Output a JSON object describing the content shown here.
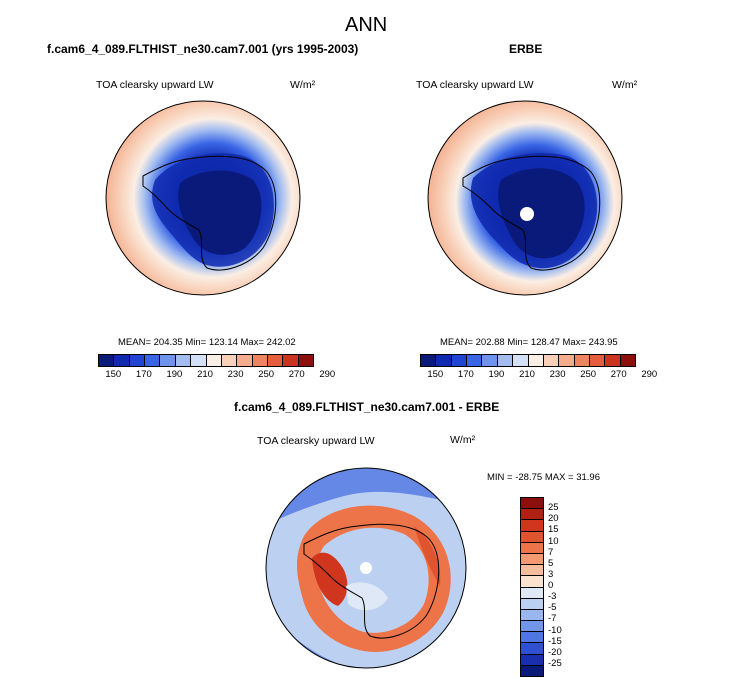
{
  "figure": {
    "title": "ANN"
  },
  "panels": [
    {
      "heading": "f.cam6_4_089.FLTHIST_ne30.cam7.001 (yrs 1995-2003)",
      "variable": "TOA clearsky upward LW",
      "units": "W/m²",
      "stats": "MEAN= 204.35  Min= 123.14  Max= 242.02"
    },
    {
      "heading": "ERBE",
      "variable": "TOA clearsky upward LW",
      "units": "W/m²",
      "stats": "MEAN= 202.88  Min= 128.47  Max= 243.95"
    },
    {
      "heading": "f.cam6_4_089.FLTHIST_ne30.cam7.001 - ERBE",
      "variable": "TOA clearsky upward LW",
      "units": "W/m²",
      "stats": "MIN = -28.75 MAX =  31.96"
    }
  ],
  "colorbar_abs": {
    "ticks": [
      "150",
      "170",
      "190",
      "210",
      "230",
      "250",
      "270",
      "290"
    ],
    "colors": [
      "#0a1a7a",
      "#0f2aaf",
      "#1f45d2",
      "#3a66e6",
      "#6d93ec",
      "#a3bdf0",
      "#d3e0f5",
      "#fbeee4",
      "#f8d0b8",
      "#f4ac8c",
      "#ee8560",
      "#e45d3c",
      "#c9331f",
      "#8b0f0a"
    ]
  },
  "colorbar_diff": {
    "ticks": [
      "25",
      "20",
      "15",
      "10",
      "7",
      "5",
      "3",
      "0",
      "-3",
      "-5",
      "-7",
      "-10",
      "-15",
      "-20",
      "-25"
    ],
    "colors": [
      "#8b0f0a",
      "#b02013",
      "#cf361d",
      "#e0532f",
      "#ec7448",
      "#f39a72",
      "#f6bd9c",
      "#fbe2cf",
      "#dfe8f7",
      "#bcd0f2",
      "#9ab6ee",
      "#7297ea",
      "#4f76e2",
      "#2f51d1",
      "#1a2fb0",
      "#0a1a7a"
    ]
  }
}
